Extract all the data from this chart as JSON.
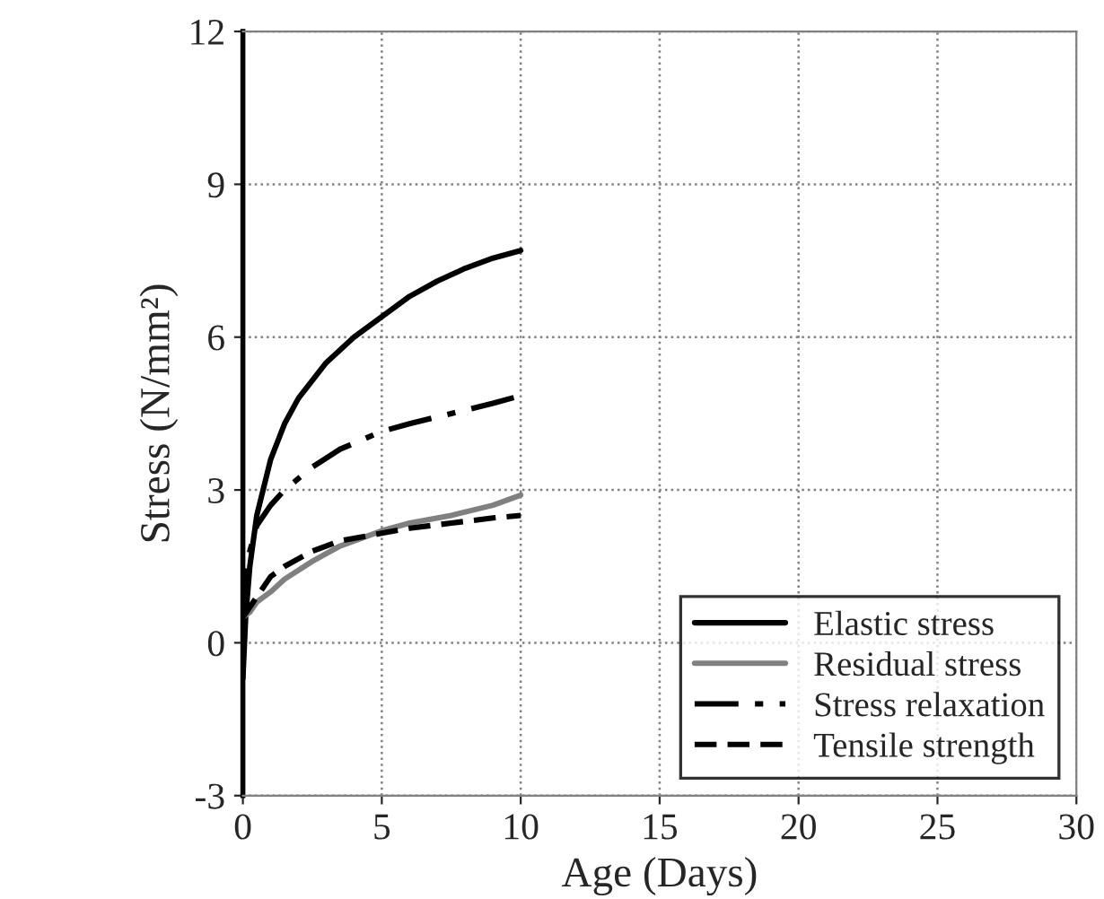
{
  "chart_data": {
    "type": "line",
    "xlabel": "Age (Days)",
    "ylabel": "Stress (N/mm²)",
    "xlim": [
      0,
      30
    ],
    "xticks": [
      0,
      5,
      10,
      15,
      20,
      25,
      30
    ],
    "ylim": [
      -3,
      12
    ],
    "yticks": [
      -3,
      0,
      3,
      6,
      9,
      12
    ],
    "grid": true,
    "legend": "bottom right",
    "marker": "none",
    "series": [
      {
        "name": "Elastic stress",
        "color": "#000000",
        "line_style": "solid",
        "x": [
          0,
          0.1,
          0.25,
          0.5,
          1,
          1.5,
          2,
          3,
          4,
          5,
          6,
          7,
          8,
          9,
          10
        ],
        "values": [
          -0.7,
          0.5,
          1.5,
          2.5,
          3.6,
          4.3,
          4.8,
          5.5,
          6.0,
          6.4,
          6.8,
          7.1,
          7.35,
          7.55,
          7.7
        ]
      },
      {
        "name": "Residual stress",
        "color": "#808080",
        "line_style": "solid",
        "x": [
          0,
          0.25,
          0.5,
          1,
          1.5,
          2.5,
          3.5,
          5,
          6,
          7.5,
          9,
          10
        ],
        "values": [
          0.5,
          0.6,
          0.8,
          1.0,
          1.25,
          1.6,
          1.9,
          2.2,
          2.35,
          2.5,
          2.7,
          2.9
        ]
      },
      {
        "name": "Stress relaxation",
        "color": "#000000",
        "line_style": "dashdot",
        "x": [
          0,
          0.1,
          0.25,
          0.5,
          1,
          1.5,
          2.5,
          3.5,
          5,
          6,
          7.5,
          9,
          10
        ],
        "values": [
          0.6,
          1.2,
          1.8,
          2.3,
          2.7,
          3.0,
          3.45,
          3.8,
          4.15,
          4.3,
          4.5,
          4.7,
          4.85
        ]
      },
      {
        "name": "Tensile strength",
        "color": "#000000",
        "line_style": "dashed",
        "x": [
          0,
          0.25,
          0.5,
          1,
          1.5,
          2.5,
          3.5,
          5,
          6,
          7.5,
          9,
          10
        ],
        "values": [
          0.5,
          0.7,
          0.9,
          1.3,
          1.5,
          1.8,
          2.0,
          2.15,
          2.25,
          2.35,
          2.45,
          2.5
        ]
      }
    ]
  }
}
